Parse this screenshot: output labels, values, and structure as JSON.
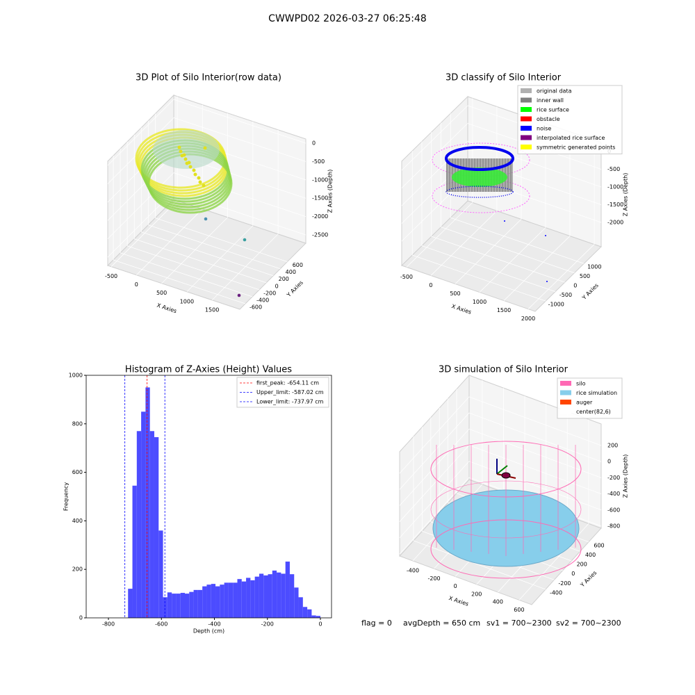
{
  "suptitle": "CWWPD02 2026-03-27 06:25:48",
  "chart_data": [
    {
      "type": "scatter3d",
      "title": "3D Plot of Silo Interior(row data)",
      "xlabel": "X Axies",
      "ylabel": "Y Axies",
      "zlabel": "Z Axies (Depth)",
      "xlim": [
        -570,
        2050
      ],
      "ylim": [
        -760,
        1130
      ],
      "zlim": [
        -2727,
        114
      ],
      "xticks": [
        -500,
        0,
        500,
        1000,
        1500
      ],
      "yticks": [
        -600,
        -400,
        -200,
        0,
        200,
        400,
        600
      ],
      "zticks": [
        0,
        -500,
        -1000,
        -1500,
        -2000,
        -2500
      ]
    },
    {
      "type": "scatter3d",
      "title": "3D classify of Silo Interior",
      "xlabel": "X Axies",
      "ylabel": "Y Axies",
      "zlabel": "Z Axies (Depth)",
      "xlim": [
        -599,
        2142
      ],
      "ylim": [
        -1552,
        1898
      ],
      "zlim": [
        -2686,
        255
      ],
      "xticks": [
        -500,
        0,
        500,
        1000,
        1500,
        2000
      ],
      "yticks": [
        -1000,
        -500,
        0,
        500,
        1000
      ],
      "zticks": [
        0,
        -500,
        -1000,
        -1500,
        -2000
      ],
      "series": [
        {
          "name": "original data",
          "color": "#b0b0b0"
        },
        {
          "name": "inner wall",
          "color": "#808080"
        },
        {
          "name": "rice surface",
          "color": "#00ff00"
        },
        {
          "name": "obstacle",
          "color": "#ff0000"
        },
        {
          "name": "noise",
          "color": "#0000ff"
        },
        {
          "name": "interpolated rice surface",
          "color": "#800080"
        },
        {
          "name": "symmetric generated points",
          "color": "#ffff00"
        }
      ]
    },
    {
      "type": "histogram",
      "title": "Histogram of Z-Axies (Height) Values",
      "xlabel": "Depth (cm)",
      "ylabel": "Frequency",
      "color": "#4c4cff",
      "xlim": [
        -884,
        42
      ],
      "ylim": [
        0,
        1000
      ],
      "xticks": [
        -800,
        -600,
        -400,
        -200,
        0
      ],
      "yticks": [
        0,
        200,
        400,
        600,
        800,
        1000
      ],
      "bins": [
        -726,
        -709.5,
        -693,
        -676.5,
        -660,
        -643.5,
        -627,
        -610.5,
        -594,
        -577.5,
        -561,
        -544.5,
        -528,
        -511.5,
        -495,
        -478.5,
        -462,
        -445.5,
        -429,
        -412.5,
        -396,
        -379.5,
        -363,
        -346.5,
        -330,
        -313.5,
        -297,
        -280.5,
        -264,
        -247.5,
        -231,
        -214.5,
        -198,
        -181.5,
        -165,
        -148.5,
        -132,
        -115.5,
        -99,
        -82.5,
        -66,
        -49.5,
        -33,
        -16.5,
        0
      ],
      "counts": [
        120,
        545,
        770,
        850,
        950,
        770,
        745,
        360,
        85,
        105,
        100,
        100,
        103,
        100,
        107,
        115,
        115,
        130,
        137,
        140,
        130,
        137,
        145,
        145,
        145,
        160,
        150,
        165,
        155,
        170,
        182,
        175,
        180,
        195,
        187,
        182,
        232,
        180,
        125,
        85,
        45,
        35,
        10,
        8
      ],
      "lines": [
        {
          "label": "first_peak: -654.11 cm",
          "value": -654.11,
          "color": "#ff0000"
        },
        {
          "label": "Upper_limit: -587.02 cm",
          "value": -587.02,
          "color": "#0000ff"
        },
        {
          "label": "Lower_limit: -737.97 cm",
          "value": -737.97,
          "color": "#0000ff"
        }
      ]
    },
    {
      "type": "surface3d",
      "title": "3D simulation of Silo Interior",
      "xlabel": "X Axies",
      "ylabel": "Y Axies",
      "zlabel": "Z Axies (Depth)",
      "xlim": [
        -524,
        718
      ],
      "ylim": [
        -723,
        890
      ],
      "zlim": [
        -826,
        467
      ],
      "xticks": [
        -400,
        -200,
        0,
        200,
        400,
        600
      ],
      "yticks": [
        -400,
        -200,
        0,
        200,
        400,
        600
      ],
      "zticks": [
        200,
        0,
        -200,
        -400,
        -600,
        -800
      ],
      "series": [
        {
          "name": "silo",
          "color": "#ff69b4"
        },
        {
          "name": "rice simulation",
          "color": "#87ceeb"
        },
        {
          "name": "auger",
          "color": "#ff4500"
        },
        {
          "name": "center(82,6)",
          "color": "#ffffff"
        }
      ]
    }
  ],
  "footer": [
    "flag = 0",
    "avgDepth = 650 cm",
    "sv1 = 700~2300",
    "sv2 = 700~2300"
  ]
}
